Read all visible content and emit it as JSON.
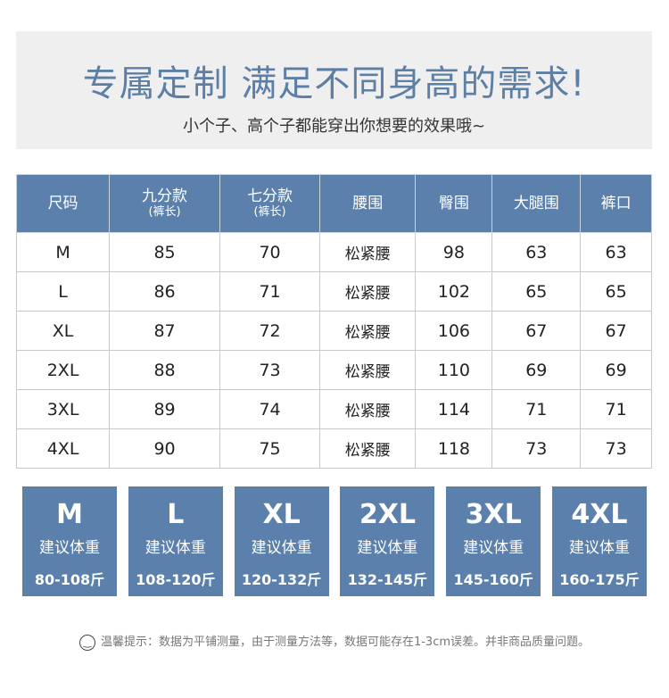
{
  "header": {
    "title": "专属定制 满足不同身高的需求!",
    "subtitle": "小个子、高个子都能穿出你想要的效果哦~"
  },
  "table": {
    "columns": [
      {
        "label": "尺码",
        "sub": ""
      },
      {
        "label": "九分款",
        "sub": "(裤长)"
      },
      {
        "label": "七分款",
        "sub": "(裤长)"
      },
      {
        "label": "腰围",
        "sub": ""
      },
      {
        "label": "臀围",
        "sub": ""
      },
      {
        "label": "大腿围",
        "sub": ""
      },
      {
        "label": "裤口",
        "sub": ""
      }
    ],
    "rows": [
      [
        "M",
        "85",
        "70",
        "松紧腰",
        "98",
        "63",
        "63"
      ],
      [
        "L",
        "86",
        "71",
        "松紧腰",
        "102",
        "65",
        "65"
      ],
      [
        "XL",
        "87",
        "72",
        "松紧腰",
        "106",
        "67",
        "67"
      ],
      [
        "2XL",
        "88",
        "73",
        "松紧腰",
        "110",
        "69",
        "69"
      ],
      [
        "3XL",
        "89",
        "74",
        "松紧腰",
        "114",
        "71",
        "71"
      ],
      [
        "4XL",
        "90",
        "75",
        "松紧腰",
        "118",
        "73",
        "73"
      ]
    ]
  },
  "weights": [
    {
      "size": "M",
      "label": "建议体重",
      "range": "80-108斤"
    },
    {
      "size": "L",
      "label": "建议体重",
      "range": "108-120斤"
    },
    {
      "size": "XL",
      "label": "建议体重",
      "range": "120-132斤"
    },
    {
      "size": "2XL",
      "label": "建议体重",
      "range": "132-145斤"
    },
    {
      "size": "3XL",
      "label": "建议体重",
      "range": "145-160斤"
    },
    {
      "size": "4XL",
      "label": "建议体重",
      "range": "160-175斤"
    }
  ],
  "tip": {
    "icon": "smiley-icon",
    "text": "温馨提示：数据为平铺测量，由于测量方法等，数据可能存在1-3cm误差。并非商品质量问题。"
  },
  "colors": {
    "accent": "#5b80ab",
    "title": "#5d7fa6"
  }
}
